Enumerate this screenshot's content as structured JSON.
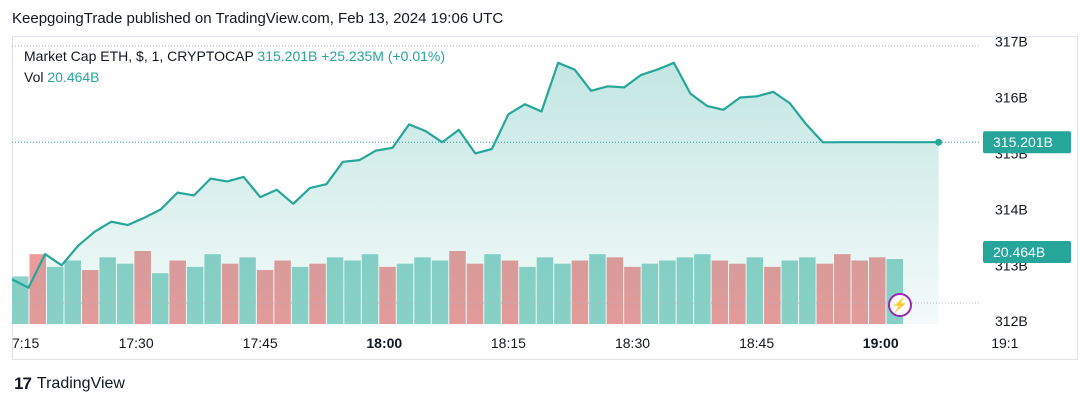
{
  "header": {
    "published": "KeepgoingTrade published on TradingView.com, Feb 13, 2024 19:06 UTC"
  },
  "legend": {
    "symbol": "Market Cap ETH, $, 1, CRYPTOCAP",
    "price": "315.201B",
    "change": "+25.235M (+0.01%)",
    "vol_label": "Vol",
    "vol_value": "20.464B"
  },
  "footer": {
    "brand": "TradingView",
    "logo_glyph": "17"
  },
  "colors": {
    "line": "#26a69a",
    "fill": "#26a69a",
    "vol_up": "#8ed3c9",
    "vol_down": "#ec9a9a",
    "label_bg": "#26a69a",
    "flash": "#9c27b0"
  },
  "chart_data": {
    "type": "area",
    "title": "Market Cap ETH, $, 1, CRYPTOCAP",
    "xlabel": "",
    "ylabel": "",
    "x_ticks": [
      "7:15",
      "17:30",
      "17:45",
      "18:00",
      "18:15",
      "18:30",
      "18:45",
      "19:00",
      "19:1"
    ],
    "x_ticks_bold": [
      "18:00",
      "19:00"
    ],
    "y_ticks": [
      "317B",
      "316B",
      "315B",
      "314B",
      "313B",
      "312B"
    ],
    "y_tick_values": [
      317,
      316,
      315,
      314,
      313,
      312
    ],
    "ylim": [
      311.95,
      317.1
    ],
    "xlim_minutes": [
      1035,
      1152
    ],
    "grid": false,
    "last_price_label": "315.201B",
    "last_vol_label": "20.464B",
    "series": [
      {
        "name": "Market Cap ETH",
        "x_minutes": [
          1035,
          1037,
          1039,
          1041,
          1043,
          1045,
          1047,
          1049,
          1051,
          1053,
          1055,
          1057,
          1059,
          1061,
          1063,
          1065,
          1067,
          1069,
          1071,
          1073,
          1075,
          1077,
          1079,
          1081,
          1083,
          1085,
          1087,
          1089,
          1091,
          1093,
          1095,
          1097,
          1099,
          1101,
          1103,
          1105,
          1107,
          1109,
          1111,
          1113,
          1115,
          1117,
          1119,
          1121,
          1123,
          1125,
          1127,
          1129,
          1131,
          1133,
          1135,
          1137,
          1139,
          1141,
          1143,
          1145,
          1147
        ],
        "values": [
          312.75,
          312.6,
          313.2,
          313.0,
          313.35,
          313.6,
          313.78,
          313.72,
          313.85,
          314.0,
          314.3,
          314.25,
          314.55,
          314.5,
          314.58,
          314.22,
          314.35,
          314.1,
          314.38,
          314.45,
          314.85,
          314.88,
          315.05,
          315.1,
          315.52,
          315.4,
          315.2,
          315.42,
          315.0,
          315.08,
          315.7,
          315.88,
          315.75,
          316.62,
          316.5,
          316.12,
          316.2,
          316.18,
          316.4,
          316.5,
          316.62,
          316.07,
          315.85,
          315.78,
          316.0,
          316.02,
          316.1,
          315.9,
          315.52,
          315.2,
          315.201,
          315.201,
          315.201,
          315.201,
          315.201,
          315.201,
          315.201
        ]
      },
      {
        "name": "Vol",
        "values_B": [
          15,
          22,
          18,
          20,
          17,
          21,
          19,
          23,
          16,
          20,
          18,
          22,
          19,
          21,
          17,
          20,
          18,
          19,
          21,
          20,
          22,
          18,
          19,
          21,
          20,
          23,
          19,
          22,
          20,
          18,
          21,
          19,
          20,
          22,
          21,
          18,
          19,
          20,
          21,
          22,
          20,
          19,
          21,
          18,
          20,
          21,
          19,
          22,
          20,
          21,
          20.464
        ],
        "direction": [
          "up",
          "down",
          "up",
          "up",
          "down",
          "up",
          "up",
          "down",
          "up",
          "down",
          "up",
          "up",
          "down",
          "up",
          "down",
          "down",
          "up",
          "down",
          "up",
          "up",
          "up",
          "down",
          "up",
          "up",
          "up",
          "down",
          "down",
          "up",
          "down",
          "up",
          "up",
          "up",
          "down",
          "up",
          "down",
          "down",
          "up",
          "up",
          "up",
          "up",
          "down",
          "down",
          "up",
          "down",
          "up",
          "up",
          "down",
          "down",
          "down",
          "down",
          "up"
        ]
      }
    ]
  }
}
